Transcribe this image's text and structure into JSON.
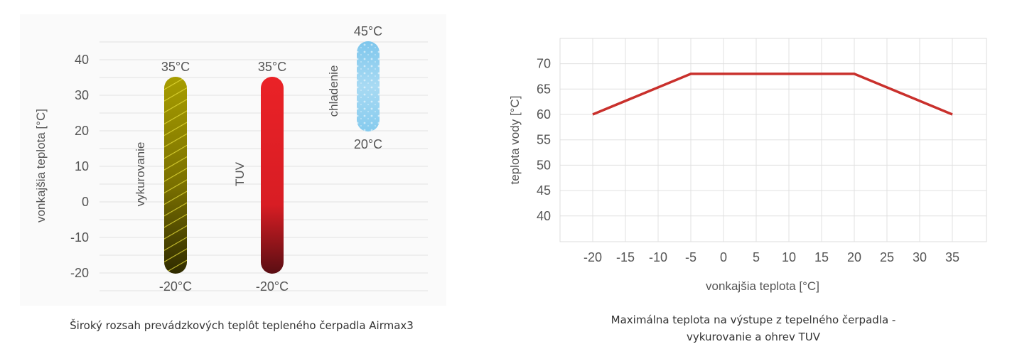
{
  "chart_data": [
    {
      "type": "bar",
      "subtype": "floating-range",
      "ylabel": "vonkajšia teplota  [°C]",
      "yticks": [
        40,
        30,
        20,
        10,
        0,
        -10,
        -20
      ],
      "ylim": [
        -25,
        45
      ],
      "series": [
        {
          "name": "vykurovanie",
          "low": -20,
          "high": 35,
          "low_label": "-20°C",
          "high_label": "35°C",
          "color": "#9a9000"
        },
        {
          "name": "TUV",
          "low": -20,
          "high": 35,
          "low_label": "-20°C",
          "high_label": "35°C",
          "color": "#e21f26"
        },
        {
          "name": "chladenie",
          "low": 20,
          "high": 45,
          "low_label": "20°C",
          "high_label": "45°C",
          "color": "#8ccbeb"
        }
      ],
      "caption": "Široký rozsah prevádzkových teplôt tepleného čerpadla Airmax3"
    },
    {
      "type": "line",
      "xlabel": "vonkajšia teplota  [°C]",
      "ylabel": "teplota vody [°C]",
      "x": [
        -20,
        -5,
        20,
        35
      ],
      "y": [
        60,
        68,
        68,
        60
      ],
      "xticks": [
        -20,
        -15,
        -10,
        -5,
        0,
        5,
        10,
        15,
        20,
        25,
        30,
        35
      ],
      "yticks": [
        70,
        65,
        60,
        55,
        50,
        45,
        40
      ],
      "xlim": [
        -25,
        40
      ],
      "ylim": [
        35,
        75
      ],
      "color": "#c9302c",
      "caption_line1": "Maximálna teplota na výstupe z tepelného čerpadla -",
      "caption_line2": "vykurovanie a ohrev TUV"
    }
  ]
}
